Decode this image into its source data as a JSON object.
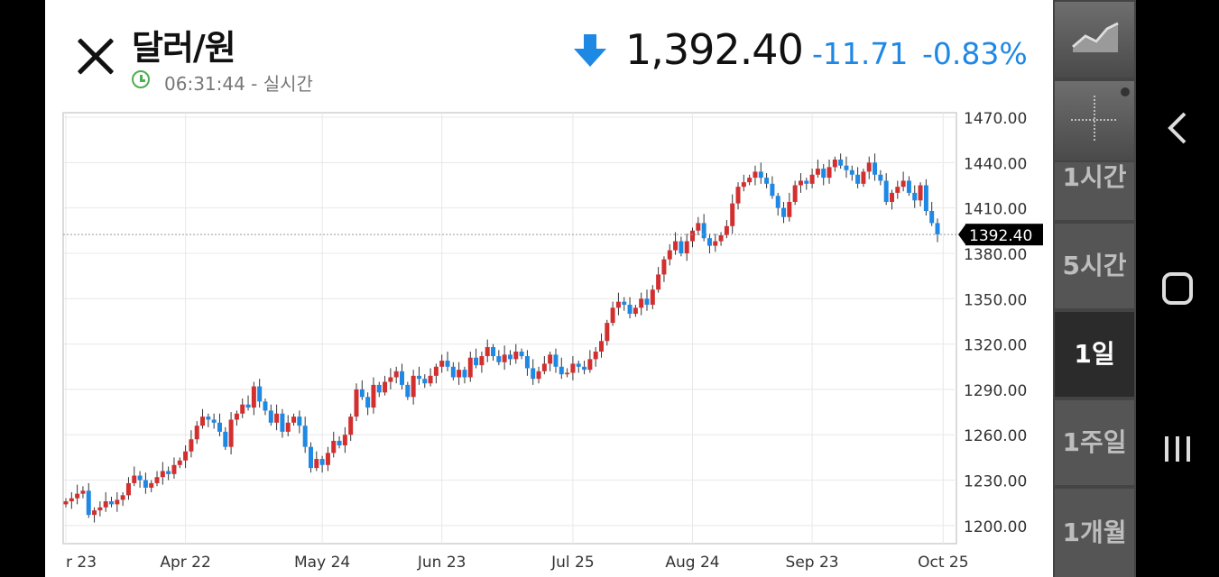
{
  "header": {
    "title": "달러/원",
    "time": "06:31:44 - 실시간",
    "price": "1,392.40",
    "change": "-11.71",
    "change_pct": "-0.83%",
    "down_color": "#1e88e5"
  },
  "intervals": [
    "1시간",
    "5시간",
    "1일",
    "1주일",
    "1개월"
  ],
  "selected_interval": "1일",
  "colors": {
    "up": "#d32f2f",
    "down": "#1e88e5",
    "grid": "#e8e8e8"
  },
  "chart_data": {
    "type": "candlestick",
    "ylim": [
      1188,
      1473
    ],
    "y_ticks": [
      "1200.00",
      "1230.00",
      "1260.00",
      "1290.00",
      "1320.00",
      "1350.00",
      "1380.00",
      "1410.00",
      "1440.00",
      "1470.00"
    ],
    "x_ticks": [
      {
        "label": "r 23",
        "index": 0
      },
      {
        "label": "Apr 22",
        "index": 21
      },
      {
        "label": "May 24",
        "index": 45
      },
      {
        "label": "Jun 23",
        "index": 66
      },
      {
        "label": "Jul 25",
        "index": 89
      },
      {
        "label": "Aug 24",
        "index": 110
      },
      {
        "label": "Sep 23",
        "index": 131
      },
      {
        "label": "Oct 25",
        "index": 154
      }
    ],
    "last_price": 1392.4,
    "last_label": "1392.40",
    "closes": [
      1216,
      1218,
      1221,
      1223,
      1207,
      1210,
      1212,
      1216,
      1214,
      1217,
      1220,
      1228,
      1233,
      1230,
      1225,
      1228,
      1232,
      1236,
      1234,
      1240,
      1243,
      1249,
      1257,
      1266,
      1272,
      1270,
      1268,
      1262,
      1252,
      1270,
      1274,
      1280,
      1278,
      1292,
      1282,
      1276,
      1268,
      1274,
      1262,
      1268,
      1272,
      1266,
      1252,
      1238,
      1244,
      1240,
      1248,
      1256,
      1253,
      1260,
      1272,
      1290,
      1285,
      1278,
      1293,
      1288,
      1295,
      1298,
      1302,
      1293,
      1285,
      1299,
      1297,
      1294,
      1299,
      1305,
      1309,
      1305,
      1298,
      1303,
      1298,
      1311,
      1306,
      1312,
      1318,
      1312,
      1308,
      1313,
      1310,
      1315,
      1312,
      1304,
      1297,
      1302,
      1307,
      1313,
      1305,
      1300,
      1301,
      1307,
      1305,
      1303,
      1310,
      1315,
      1322,
      1334,
      1344,
      1348,
      1346,
      1340,
      1344,
      1350,
      1346,
      1356,
      1366,
      1376,
      1382,
      1388,
      1380,
      1388,
      1395,
      1400,
      1390,
      1385,
      1388,
      1392,
      1398,
      1413,
      1424,
      1427,
      1430,
      1434,
      1430,
      1426,
      1418,
      1410,
      1404,
      1414,
      1425,
      1428,
      1426,
      1432,
      1436,
      1430,
      1437,
      1442,
      1438,
      1435,
      1432,
      1426,
      1434,
      1440,
      1432,
      1428,
      1414,
      1420,
      1424,
      1428,
      1420,
      1415,
      1425,
      1408,
      1400,
      1392.4
    ]
  }
}
